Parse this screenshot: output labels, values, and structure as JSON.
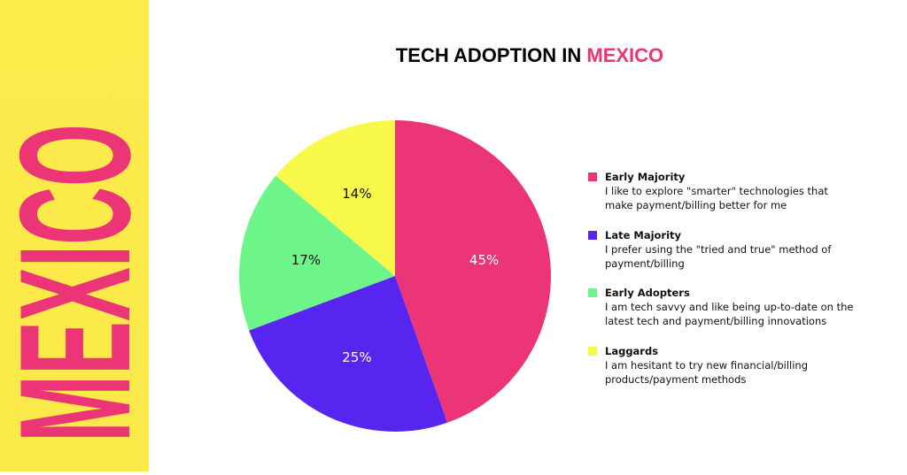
{
  "banner": "MEXICO",
  "chart_data": {
    "type": "pie",
    "title": "TECH ADOPTION IN",
    "title_highlight": "MEXICO",
    "categories": [
      "Early Majority",
      "Late Majority",
      "Early Adopters",
      "Laggards"
    ],
    "descriptions": [
      "I like to explore \"smarter\" technologies that make payment/billing better for me",
      "I prefer using the \"tried and true\" method of payment/billing",
      "I am tech savvy and like being up-to-date on the latest tech and payment/billing innovations",
      "I am hesitant to try new financial/billing products/payment methods"
    ],
    "values": [
      45,
      25,
      17,
      14
    ],
    "value_labels": [
      "45%",
      "25%",
      "17%",
      "14%"
    ],
    "colors": [
      "#ec3577",
      "#5724f0",
      "#6ef58a",
      "#f7f84a"
    ],
    "legend": "right"
  }
}
